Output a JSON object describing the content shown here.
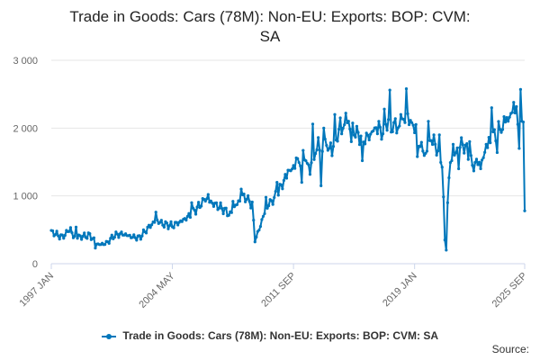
{
  "chart_data": {
    "type": "line",
    "title_lines": [
      "Trade in Goods: Cars (78M): Non-EU: Exports: BOP: CVM:",
      "SA"
    ],
    "xlabel": "",
    "ylabel": "",
    "ylim": [
      0,
      3000
    ],
    "y_ticks": [
      0,
      1000,
      2000,
      3000
    ],
    "y_tick_labels": [
      "0",
      "1 000",
      "2 000",
      "3 000"
    ],
    "x_ticks": [
      {
        "label": "1997 JAN",
        "index": 0
      },
      {
        "label": "2004 MAY",
        "index": 88
      },
      {
        "label": "2011 SEP",
        "index": 176
      },
      {
        "label": "2019 JAN",
        "index": 264
      },
      {
        "label": "2025 SEP",
        "index": 344
      }
    ],
    "series": [
      {
        "name": "Trade in Goods: Cars (78M): Non-EU: Exports: BOP: CVM: SA",
        "color": "#0077bb",
        "anchors": [
          [
            0,
            470
          ],
          [
            8,
            390
          ],
          [
            14,
            520
          ],
          [
            16,
            390
          ],
          [
            22,
            400
          ],
          [
            28,
            420
          ],
          [
            34,
            280
          ],
          [
            40,
            300
          ],
          [
            46,
            420
          ],
          [
            52,
            440
          ],
          [
            58,
            400
          ],
          [
            64,
            380
          ],
          [
            70,
            520
          ],
          [
            76,
            640
          ],
          [
            82,
            580
          ],
          [
            88,
            560
          ],
          [
            94,
            620
          ],
          [
            100,
            700
          ],
          [
            106,
            820
          ],
          [
            112,
            960
          ],
          [
            118,
            880
          ],
          [
            124,
            820
          ],
          [
            130,
            720
          ],
          [
            134,
            860
          ],
          [
            140,
            1000
          ],
          [
            146,
            860
          ],
          [
            148,
            360
          ],
          [
            150,
            440
          ],
          [
            154,
            700
          ],
          [
            158,
            880
          ],
          [
            162,
            960
          ],
          [
            166,
            1100
          ],
          [
            170,
            1260
          ],
          [
            174,
            1380
          ],
          [
            180,
            1500
          ],
          [
            184,
            1620
          ],
          [
            188,
            1400
          ],
          [
            192,
            1640
          ],
          [
            196,
            1680
          ],
          [
            200,
            1780
          ],
          [
            204,
            1700
          ],
          [
            208,
            1900
          ],
          [
            212,
            2000
          ],
          [
            216,
            2080
          ],
          [
            220,
            1960
          ],
          [
            224,
            1880
          ],
          [
            228,
            1840
          ],
          [
            232,
            1900
          ],
          [
            236,
            2000
          ],
          [
            240,
            1920
          ],
          [
            244,
            2100
          ],
          [
            248,
            2000
          ],
          [
            252,
            1980
          ],
          [
            256,
            2140
          ],
          [
            260,
            2160
          ],
          [
            264,
            2050
          ],
          [
            268,
            1750
          ],
          [
            272,
            1600
          ],
          [
            276,
            1840
          ],
          [
            280,
            1700
          ],
          [
            284,
            1500
          ],
          [
            286,
            350
          ],
          [
            287,
            200
          ],
          [
            288,
            900
          ],
          [
            290,
            1520
          ],
          [
            294,
            1640
          ],
          [
            298,
            1780
          ],
          [
            302,
            1680
          ],
          [
            306,
            1440
          ],
          [
            310,
            1500
          ],
          [
            314,
            1560
          ],
          [
            318,
            1780
          ],
          [
            322,
            1900
          ],
          [
            326,
            2000
          ],
          [
            330,
            2150
          ],
          [
            334,
            2200
          ],
          [
            338,
            2220
          ],
          [
            342,
            1800
          ],
          [
            344,
            780
          ]
        ],
        "spikes": [
          [
            18,
            540
          ],
          [
            32,
            230
          ],
          [
            76,
            760
          ],
          [
            102,
            900
          ],
          [
            114,
            1020
          ],
          [
            132,
            920
          ],
          [
            138,
            1100
          ],
          [
            144,
            920
          ],
          [
            156,
            980
          ],
          [
            164,
            1200
          ],
          [
            172,
            1380
          ],
          [
            178,
            1560
          ],
          [
            182,
            1200
          ],
          [
            186,
            1480
          ],
          [
            190,
            2060
          ],
          [
            194,
            1860
          ],
          [
            196,
            1150
          ],
          [
            198,
            2000
          ],
          [
            202,
            1700
          ],
          [
            206,
            2200
          ],
          [
            210,
            2150
          ],
          [
            214,
            2220
          ],
          [
            218,
            1800
          ],
          [
            226,
            1520
          ],
          [
            234,
            1960
          ],
          [
            238,
            2100
          ],
          [
            242,
            2280
          ],
          [
            246,
            2560
          ],
          [
            250,
            2140
          ],
          [
            254,
            2200
          ],
          [
            258,
            2580
          ],
          [
            262,
            2080
          ],
          [
            266,
            1580
          ],
          [
            274,
            2100
          ],
          [
            278,
            1900
          ],
          [
            282,
            1900
          ],
          [
            292,
            1760
          ],
          [
            296,
            1400
          ],
          [
            304,
            1800
          ],
          [
            312,
            1400
          ],
          [
            316,
            1760
          ],
          [
            320,
            2300
          ],
          [
            324,
            1640
          ],
          [
            328,
            1980
          ],
          [
            332,
            2100
          ],
          [
            336,
            2380
          ],
          [
            340,
            1700
          ],
          [
            341,
            2570
          ],
          [
            342,
            2100
          ],
          [
            343,
            2090
          ]
        ]
      }
    ]
  },
  "legend": {
    "label": "Trade in Goods: Cars (78M): Non-EU: Exports: BOP: CVM: SA"
  },
  "footer": {
    "source_label": "Source:"
  }
}
